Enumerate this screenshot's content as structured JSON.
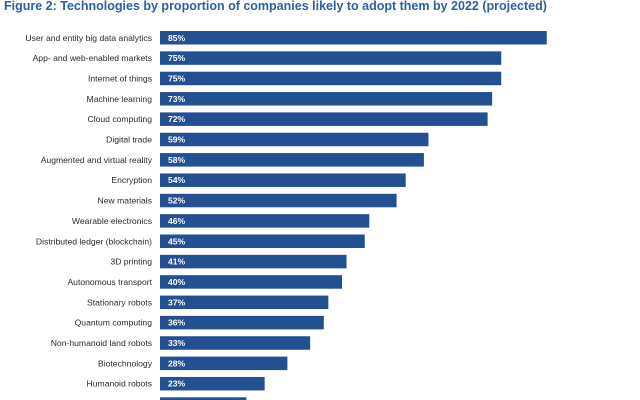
{
  "title": "Figure 2: Technologies by proportion of companies likely to adopt them by 2022 (projected)",
  "chart_data": {
    "type": "bar",
    "orientation": "horizontal",
    "title": "Figure 2: Technologies by proportion of companies likely to adopt them by 2022 (projected)",
    "xlabel": "",
    "ylabel": "",
    "xlim": [
      0,
      100
    ],
    "grid": false,
    "bar_color": "#234f93",
    "categories": [
      "User and entity big data analytics",
      "App- and web-enabled markets",
      "Internet of things",
      "Machine learning",
      "Cloud computing",
      "Digital trade",
      "Augmented and virtual reality",
      "Encryption",
      "New materials",
      "Wearable electronics",
      "Distributed ledger (blockchain)",
      "3D printing",
      "Autonomous transport",
      "Stationary robots",
      "Quantum computing",
      "Non-humanoid land robots",
      "Biotechnology",
      "Humanoid robots",
      ""
    ],
    "values": [
      85,
      75,
      75,
      73,
      72,
      59,
      58,
      54,
      52,
      46,
      45,
      41,
      40,
      37,
      36,
      33,
      28,
      23,
      19
    ],
    "value_labels": [
      "85%",
      "75%",
      "75%",
      "73%",
      "72%",
      "59%",
      "58%",
      "54%",
      "52%",
      "46%",
      "45%",
      "41%",
      "40%",
      "37%",
      "36%",
      "33%",
      "28%",
      "23%",
      ""
    ]
  }
}
